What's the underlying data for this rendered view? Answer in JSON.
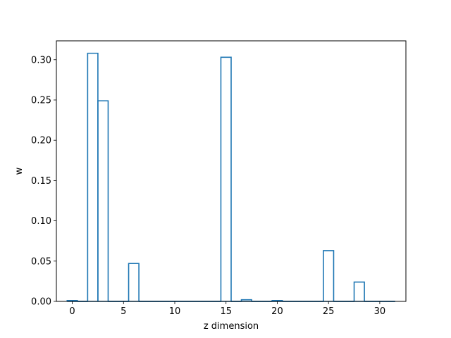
{
  "chart_data": {
    "type": "bar",
    "style": "step-outline",
    "xlabel": "z dimension",
    "ylabel": "w",
    "xlim": [
      -1.55,
      32.55
    ],
    "ylim": [
      0,
      0.3234
    ],
    "xticks": [
      0,
      5,
      10,
      15,
      20,
      25,
      30
    ],
    "yticks": [
      0.0,
      0.05,
      0.1,
      0.15,
      0.2,
      0.25,
      0.3
    ],
    "xtick_labels": [
      "0",
      "5",
      "10",
      "15",
      "20",
      "25",
      "30"
    ],
    "ytick_labels": [
      "0.00",
      "0.05",
      "0.10",
      "0.15",
      "0.20",
      "0.25",
      "0.30"
    ],
    "x": [
      0,
      1,
      2,
      3,
      4,
      5,
      6,
      7,
      8,
      9,
      10,
      11,
      12,
      13,
      14,
      15,
      16,
      17,
      18,
      19,
      20,
      21,
      22,
      23,
      24,
      25,
      26,
      27,
      28,
      29,
      30,
      31
    ],
    "values": [
      0.001,
      0.0,
      0.308,
      0.249,
      0.0,
      0.0,
      0.047,
      0.0,
      0.0,
      0.0,
      0.0,
      0.0,
      0.0,
      0.0,
      0.0,
      0.303,
      0.0,
      0.002,
      0.0,
      0.0,
      0.001,
      0.0,
      0.0,
      0.0,
      0.0,
      0.063,
      0.0,
      0.0,
      0.024,
      0.0,
      0.0,
      0.0
    ],
    "color": "#1f77b4",
    "grid": false
  }
}
